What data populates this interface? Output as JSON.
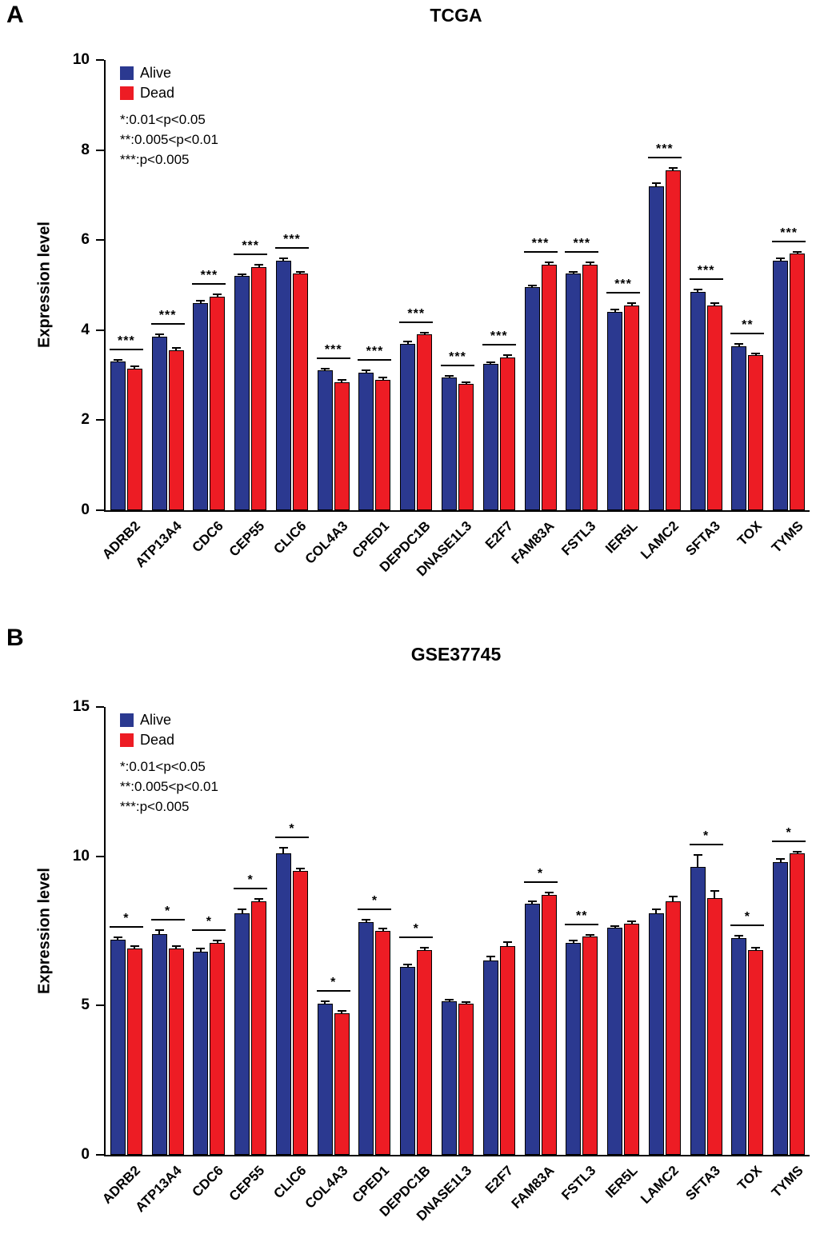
{
  "chart_data": [
    {
      "type": "bar",
      "panel_label": "A",
      "title": "TCGA",
      "ylabel": "Expression level",
      "ylim": [
        0,
        10
      ],
      "yticks": [
        0,
        2,
        4,
        6,
        8,
        10
      ],
      "grid": false,
      "legend_position": "top-left-inside",
      "notes": [
        "*:0.01<p<0.05",
        "**:0.005<p<0.01",
        "***:p<0.005"
      ],
      "categories": [
        "ADRB2",
        "ATP13A4",
        "CDC6",
        "CEP55",
        "CLIC6",
        "COL4A3",
        "CPED1",
        "DEPDC1B",
        "DNASE1L3",
        "E2F7",
        "FAM83A",
        "FSTL3",
        "IER5L",
        "LAMC2",
        "SFTA3",
        "TOX",
        "TYMS"
      ],
      "series": [
        {
          "name": "Alive",
          "color": "#2b3990",
          "values": [
            3.3,
            3.85,
            4.6,
            5.2,
            5.55,
            3.1,
            3.05,
            3.7,
            2.95,
            3.25,
            4.95,
            5.25,
            4.4,
            7.2,
            4.85,
            3.65,
            5.55
          ],
          "errors": [
            0.04,
            0.05,
            0.05,
            0.04,
            0.05,
            0.04,
            0.05,
            0.05,
            0.04,
            0.04,
            0.05,
            0.04,
            0.05,
            0.06,
            0.05,
            0.04,
            0.04
          ]
        },
        {
          "name": "Dead",
          "color": "#ed1c24",
          "values": [
            3.15,
            3.55,
            4.75,
            5.4,
            5.25,
            2.85,
            2.9,
            3.9,
            2.8,
            3.4,
            5.45,
            5.45,
            4.55,
            7.55,
            4.55,
            3.45,
            5.7
          ],
          "errors": [
            0.04,
            0.05,
            0.05,
            0.05,
            0.05,
            0.04,
            0.05,
            0.05,
            0.04,
            0.04,
            0.06,
            0.05,
            0.05,
            0.05,
            0.05,
            0.04,
            0.04
          ]
        }
      ],
      "significance": [
        "***",
        "***",
        "***",
        "***",
        "***",
        "***",
        "***",
        "***",
        "***",
        "***",
        "***",
        "***",
        "***",
        "***",
        "***",
        "**",
        "***"
      ]
    },
    {
      "type": "bar",
      "panel_label": "B",
      "title": "GSE37745",
      "ylabel": "Expression level",
      "ylim": [
        0,
        15
      ],
      "yticks": [
        0,
        5,
        10,
        15
      ],
      "grid": false,
      "legend_position": "top-left-inside",
      "notes": [
        "*:0.01<p<0.05",
        "**:0.005<p<0.01",
        "***:p<0.005"
      ],
      "categories": [
        "ADRB2",
        "ATP13A4",
        "CDC6",
        "CEP55",
        "CLIC6",
        "COL4A3",
        "CPED1",
        "DEPDC1B",
        "DNASE1L3",
        "E2F7",
        "FAM83A",
        "FSTL3",
        "IER5L",
        "LAMC2",
        "SFTA3",
        "TOX",
        "TYMS"
      ],
      "series": [
        {
          "name": "Alive",
          "color": "#2b3990",
          "values": [
            7.2,
            7.4,
            6.8,
            8.1,
            10.1,
            5.05,
            7.8,
            6.3,
            5.15,
            6.5,
            8.4,
            7.1,
            7.6,
            8.1,
            9.65,
            7.25,
            9.8
          ],
          "errors": [
            0.08,
            0.12,
            0.1,
            0.12,
            0.18,
            0.08,
            0.08,
            0.08,
            0.05,
            0.15,
            0.1,
            0.07,
            0.07,
            0.12,
            0.4,
            0.1,
            0.1
          ]
        },
        {
          "name": "Dead",
          "color": "#ed1c24",
          "values": [
            6.9,
            6.9,
            7.1,
            8.5,
            9.5,
            4.75,
            7.5,
            6.85,
            5.05,
            7.0,
            8.7,
            7.3,
            7.75,
            8.5,
            8.6,
            6.85,
            10.1
          ],
          "errors": [
            0.08,
            0.1,
            0.08,
            0.08,
            0.1,
            0.07,
            0.07,
            0.1,
            0.05,
            0.12,
            0.08,
            0.07,
            0.07,
            0.15,
            0.25,
            0.08,
            0.06
          ]
        }
      ],
      "significance": [
        "*",
        "*",
        "*",
        "*",
        "*",
        "*",
        "*",
        "*",
        null,
        null,
        "*",
        "**",
        null,
        null,
        "*",
        "*",
        "*"
      ]
    }
  ]
}
